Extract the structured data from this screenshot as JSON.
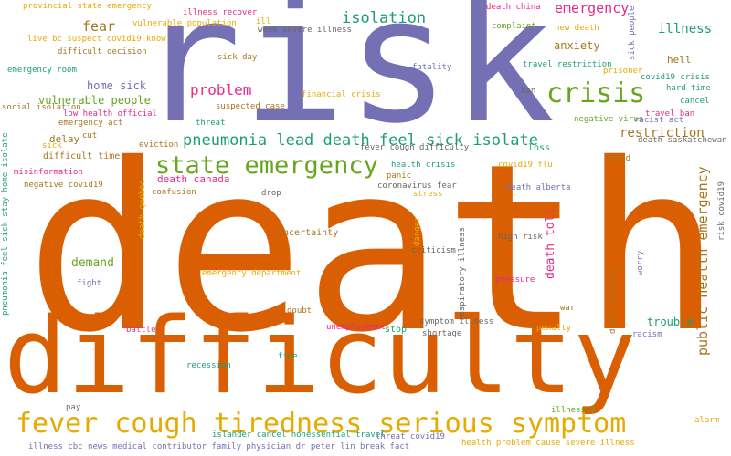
{
  "colors": {
    "orange": "#d95f02",
    "purple": "#7570b3",
    "green": "#1b9e77",
    "magenta": "#e7298a",
    "lime": "#66a61e",
    "gold": "#e6ab02",
    "brown": "#a6761d",
    "gray": "#666666"
  },
  "words": [
    {
      "text": "death",
      "color": "orange"
    },
    {
      "text": "risk",
      "color": "purple"
    },
    {
      "text": "difficulty",
      "color": "orange"
    },
    {
      "text": "fever cough tiredness serious symptom",
      "color": "gold"
    },
    {
      "text": "pneumonia lead death feel sick isolate",
      "color": "green"
    },
    {
      "text": "state emergency",
      "color": "lime"
    },
    {
      "text": "crisis",
      "color": "lime"
    },
    {
      "text": "isolation",
      "color": "green"
    },
    {
      "text": "public health emergency",
      "color": "brown"
    },
    {
      "text": "problem",
      "color": "magenta"
    },
    {
      "text": "fear",
      "color": "brown"
    },
    {
      "text": "emergency",
      "color": "magenta"
    },
    {
      "text": "illness",
      "color": "green"
    },
    {
      "text": "anxiety",
      "color": "brown"
    },
    {
      "text": "restriction",
      "color": "brown"
    },
    {
      "text": "home sick",
      "color": "purple"
    },
    {
      "text": "vulnerable people",
      "color": "lime"
    },
    {
      "text": "death toll",
      "color": "magenta"
    },
    {
      "text": "demand",
      "color": "lime"
    },
    {
      "text": "hell",
      "color": "brown"
    },
    {
      "text": "trouble",
      "color": "green"
    },
    {
      "text": "delay",
      "color": "brown"
    },
    {
      "text": "death canada",
      "color": "magenta"
    },
    {
      "text": "difficult time",
      "color": "brown"
    },
    {
      "text": "uncertainty",
      "color": "brown"
    },
    {
      "text": "provincial state emergency",
      "color": "gold"
    },
    {
      "text": "vulnerable population",
      "color": "gold"
    },
    {
      "text": "illness recover",
      "color": "magenta"
    },
    {
      "text": "ill",
      "color": "gold"
    },
    {
      "text": "week severe illness",
      "color": "gray"
    },
    {
      "text": "death china",
      "color": "magenta"
    },
    {
      "text": "new death",
      "color": "gold"
    },
    {
      "text": "complaint",
      "color": "lime"
    },
    {
      "text": "sick people",
      "color": "purple"
    },
    {
      "text": "live bc suspect covid19 know",
      "color": "gold"
    },
    {
      "text": "difficult decision",
      "color": "brown"
    },
    {
      "text": "emergency room",
      "color": "green"
    },
    {
      "text": "sick day",
      "color": "brown"
    },
    {
      "text": "fatality",
      "color": "purple"
    },
    {
      "text": "travel restriction",
      "color": "green"
    },
    {
      "text": "ban",
      "color": "gray"
    },
    {
      "text": "prisoner",
      "color": "gold"
    },
    {
      "text": "covid19 crisis",
      "color": "green"
    },
    {
      "text": "hard time",
      "color": "green"
    },
    {
      "text": "cancel",
      "color": "green"
    },
    {
      "text": "financial crisis",
      "color": "gold"
    },
    {
      "text": "social isolation",
      "color": "brown"
    },
    {
      "text": "suspected case",
      "color": "brown"
    },
    {
      "text": "low health official",
      "color": "magenta"
    },
    {
      "text": "emergency act",
      "color": "brown"
    },
    {
      "text": "travel ban",
      "color": "magenta"
    },
    {
      "text": "threat",
      "color": "green"
    },
    {
      "text": "negative virus",
      "color": "lime"
    },
    {
      "text": "racist act",
      "color": "purple"
    },
    {
      "text": "cut",
      "color": "brown"
    },
    {
      "text": "sick",
      "color": "gold"
    },
    {
      "text": "eviction",
      "color": "brown"
    },
    {
      "text": "death saskatchewan",
      "color": "gray"
    },
    {
      "text": "fever cough difficulty",
      "color": "gray"
    },
    {
      "text": "loss",
      "color": "green"
    },
    {
      "text": "pneumonia feel sick stay home isolate",
      "color": "green"
    },
    {
      "text": "misinformation",
      "color": "magenta"
    },
    {
      "text": "panic",
      "color": "brown"
    },
    {
      "text": "health crisis",
      "color": "green"
    },
    {
      "text": "covid19 flu",
      "color": "gold"
    },
    {
      "text": "avoid",
      "color": "brown"
    },
    {
      "text": "negative covid19",
      "color": "brown"
    },
    {
      "text": "coronavirus fear",
      "color": "gray"
    },
    {
      "text": "death alberta",
      "color": "purple"
    },
    {
      "text": "death quebec",
      "color": "gold"
    },
    {
      "text": "confusion",
      "color": "brown"
    },
    {
      "text": "drop",
      "color": "gray"
    },
    {
      "text": "stress",
      "color": "gold"
    },
    {
      "text": "risk covid19",
      "color": "gray"
    },
    {
      "text": "danger",
      "color": "gold"
    },
    {
      "text": "respiratory illness",
      "color": "gray"
    },
    {
      "text": "high risk",
      "color": "gray"
    },
    {
      "text": "criticism",
      "color": "gray"
    },
    {
      "text": "worry",
      "color": "purple"
    },
    {
      "text": "emergency department",
      "color": "gold"
    },
    {
      "text": "fight",
      "color": "purple"
    },
    {
      "text": "pressure",
      "color": "magenta"
    },
    {
      "text": "doubt",
      "color": "brown"
    },
    {
      "text": "war",
      "color": "brown"
    },
    {
      "text": "death ontario",
      "color": "brown"
    },
    {
      "text": "battle",
      "color": "magenta"
    },
    {
      "text": "unemployment",
      "color": "magenta"
    },
    {
      "text": "stop",
      "color": "green"
    },
    {
      "text": "symptom illness",
      "color": "gray"
    },
    {
      "text": "shortage",
      "color": "gray"
    },
    {
      "text": "penalty",
      "color": "gold"
    },
    {
      "text": "racism",
      "color": "purple"
    },
    {
      "text": "fire",
      "color": "green"
    },
    {
      "text": "recession",
      "color": "green"
    },
    {
      "text": "pay",
      "color": "gray"
    },
    {
      "text": "illness19",
      "color": "lime"
    },
    {
      "text": "alarm",
      "color": "gold"
    },
    {
      "text": "islander cancel nonessential travel",
      "color": "green"
    },
    {
      "text": "threat covid19",
      "color": "purple"
    },
    {
      "text": "illness cbc news medical contributor family physician dr peter lin break fact",
      "color": "purple"
    },
    {
      "text": "health problem cause severe illness",
      "color": "gold"
    }
  ]
}
